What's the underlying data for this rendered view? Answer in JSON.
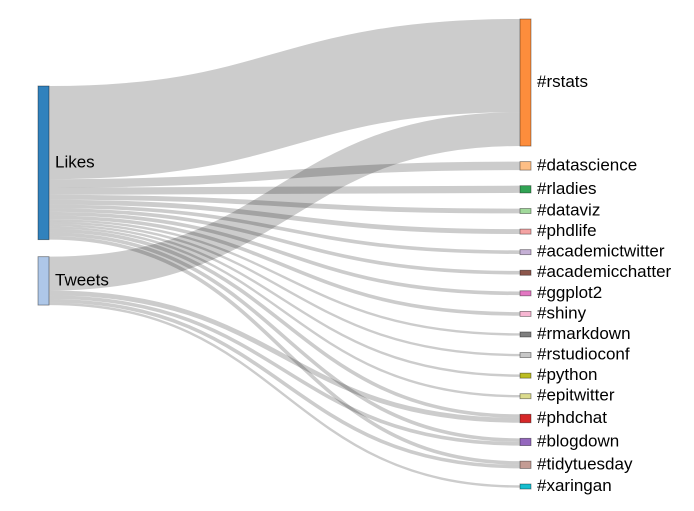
{
  "chart_data": {
    "type": "sankey",
    "sources": [
      {
        "name": "Likes",
        "color": "#3182bd"
      },
      {
        "name": "Tweets",
        "color": "#aec7e8"
      }
    ],
    "targets": [
      {
        "name": "#rstats",
        "color": "#fd8d3c"
      },
      {
        "name": "#datascience",
        "color": "#fdbe85"
      },
      {
        "name": "#rladies",
        "color": "#31a354"
      },
      {
        "name": "#dataviz",
        "color": "#a1d99b"
      },
      {
        "name": "#phdlife",
        "color": "#f4a3a3"
      },
      {
        "name": "#academictwitter",
        "color": "#c5b0d5"
      },
      {
        "name": "#academicchatter",
        "color": "#8c564b"
      },
      {
        "name": "#ggplot2",
        "color": "#e377c2"
      },
      {
        "name": "#shiny",
        "color": "#f7b6d2"
      },
      {
        "name": "#rmarkdown",
        "color": "#7f7f7f"
      },
      {
        "name": "#rstudioconf",
        "color": "#c7c7c7"
      },
      {
        "name": "#python",
        "color": "#bcbd22"
      },
      {
        "name": "#epitwitter",
        "color": "#dbdb8d"
      },
      {
        "name": "#phdchat",
        "color": "#d62728"
      },
      {
        "name": "#blogdown",
        "color": "#9467bd"
      },
      {
        "name": "#tidytuesday",
        "color": "#c49c94"
      },
      {
        "name": "#xaringan",
        "color": "#17becf"
      }
    ],
    "links": [
      {
        "source": "Likes",
        "target": "#rstats",
        "value": 77
      },
      {
        "source": "Likes",
        "target": "#datascience",
        "value": 7
      },
      {
        "source": "Likes",
        "target": "#rladies",
        "value": 6
      },
      {
        "source": "Likes",
        "target": "#dataviz",
        "value": 4
      },
      {
        "source": "Likes",
        "target": "#phdlife",
        "value": 4
      },
      {
        "source": "Likes",
        "target": "#academictwitter",
        "value": 3
      },
      {
        "source": "Likes",
        "target": "#academicchatter",
        "value": 3
      },
      {
        "source": "Likes",
        "target": "#ggplot2",
        "value": 3
      },
      {
        "source": "Likes",
        "target": "#shiny",
        "value": 3
      },
      {
        "source": "Likes",
        "target": "#rmarkdown",
        "value": 2
      },
      {
        "source": "Likes",
        "target": "#rstudioconf",
        "value": 2
      },
      {
        "source": "Likes",
        "target": "#python",
        "value": 2
      },
      {
        "source": "Likes",
        "target": "#epitwitter",
        "value": 2
      },
      {
        "source": "Likes",
        "target": "#phdchat",
        "value": 3
      },
      {
        "source": "Likes",
        "target": "#blogdown",
        "value": 3
      },
      {
        "source": "Likes",
        "target": "#tidytuesday",
        "value": 3
      },
      {
        "source": "Tweets",
        "target": "#rstats",
        "value": 28
      },
      {
        "source": "Tweets",
        "target": "#phdchat",
        "value": 4
      },
      {
        "source": "Tweets",
        "target": "#blogdown",
        "value": 3
      },
      {
        "source": "Tweets",
        "target": "#tidytuesday",
        "value": 3
      },
      {
        "source": "Tweets",
        "target": "#xaringan",
        "value": 2
      }
    ]
  }
}
